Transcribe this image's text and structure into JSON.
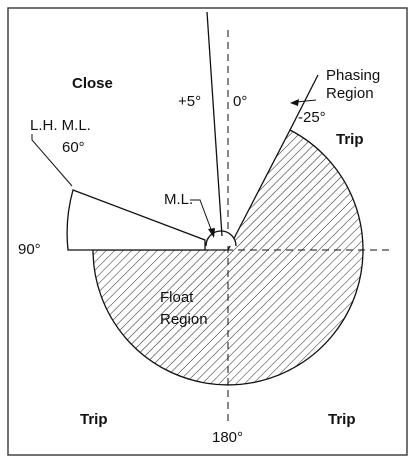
{
  "labels": {
    "close": "Close",
    "plus5": "+5°",
    "zero": "0°",
    "phasing_region": [
      "Phasing",
      "Region"
    ],
    "minus25": "-25°",
    "trip_upper_right": "Trip",
    "lh_ml": "L.H. M.L.",
    "sixty": "60°",
    "ml": "M.L.",
    "ninety": "90°",
    "float_region": [
      "Float",
      "Region"
    ],
    "trip_lower_left": "Trip",
    "one_eighty": "180°",
    "trip_lower_right": "Trip"
  }
}
